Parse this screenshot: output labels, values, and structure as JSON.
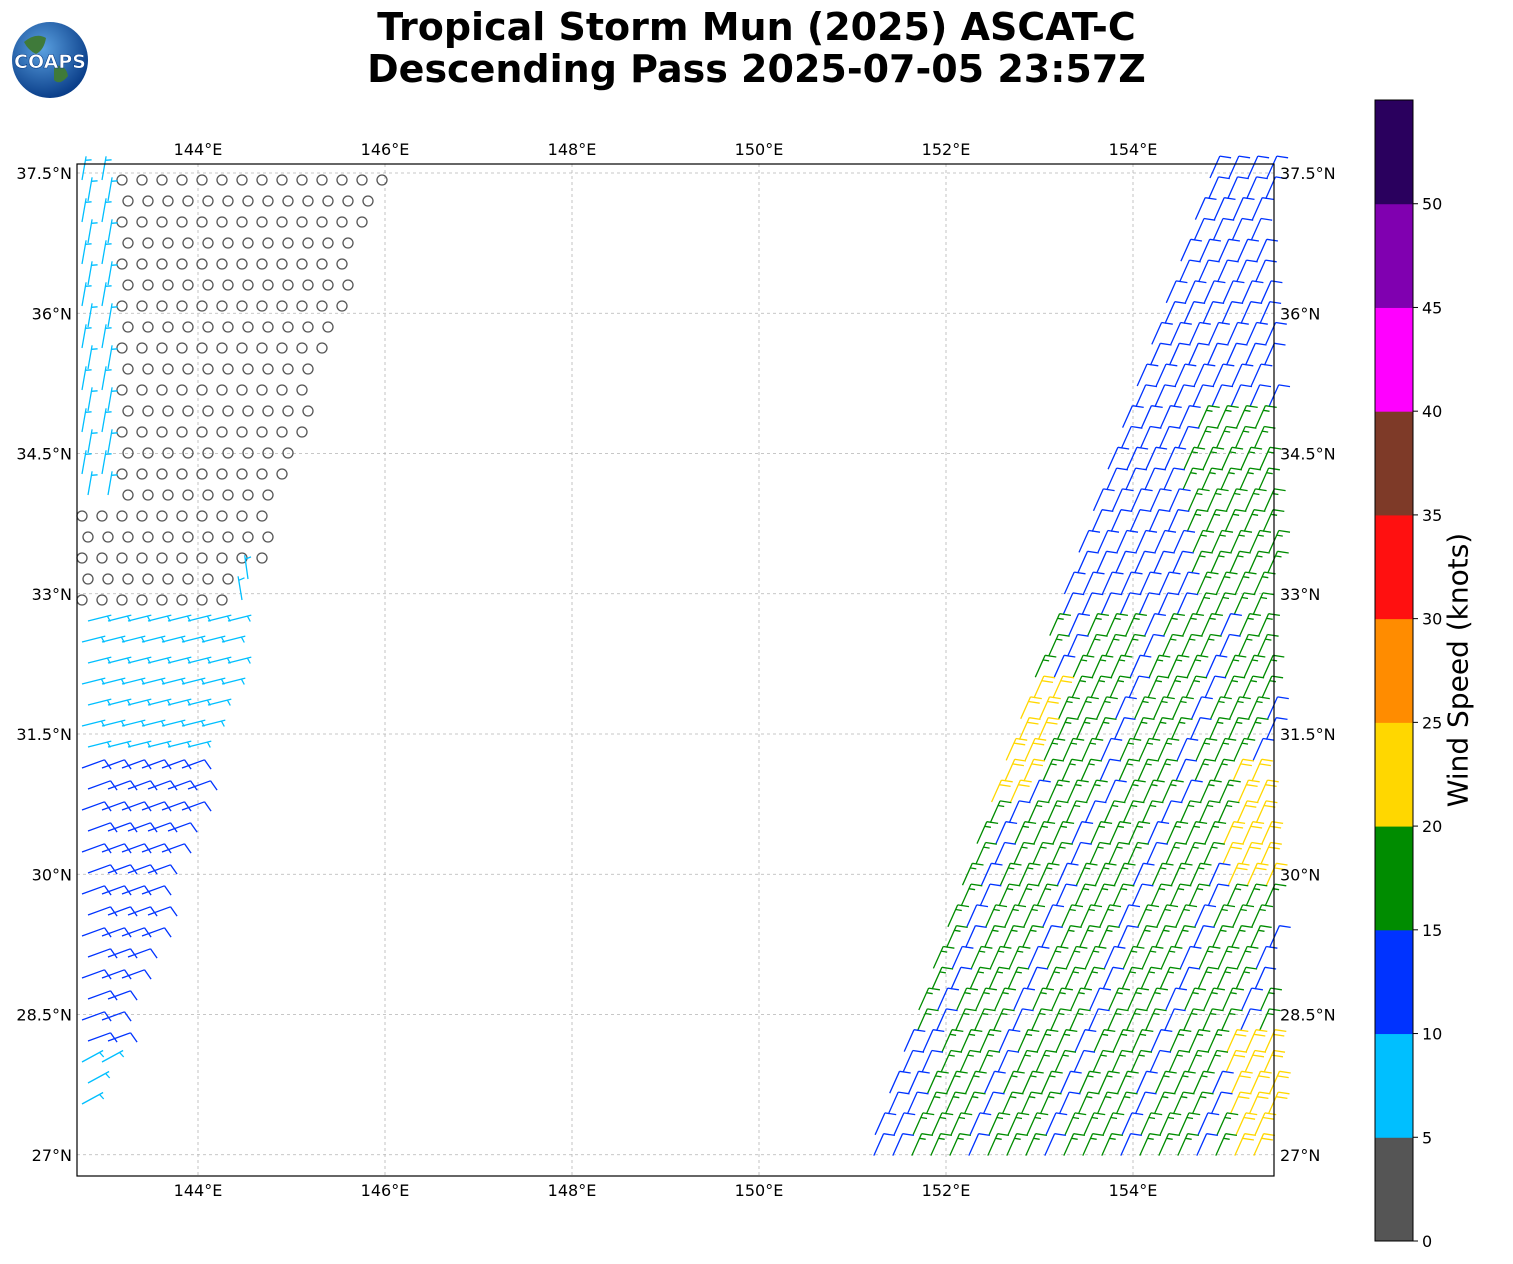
{
  "title": {
    "line1": "Tropical Storm Mun (2025) ASCAT-C",
    "line2": "Descending Pass 2025-07-05 23:57Z"
  },
  "logo": {
    "text": "COAPS",
    "icon": "globe-logo-icon"
  },
  "map": {
    "lon_ticks": [
      "144°E",
      "146°E",
      "148°E",
      "150°E",
      "152°E",
      "154°E"
    ],
    "lat_ticks": [
      "37.5°N",
      "36°N",
      "34.5°N",
      "33°N",
      "31.5°N",
      "30°N",
      "28.5°N",
      "27°N"
    ],
    "lon_range": [
      142.7,
      155.5
    ],
    "lat_range": [
      26.8,
      37.6
    ],
    "gridlines": true
  },
  "colorbar": {
    "label": "Wind Speed (knots)",
    "ticks": [
      "0",
      "5",
      "10",
      "15",
      "20",
      "25",
      "30",
      "35",
      "40",
      "45",
      "50"
    ],
    "colors": [
      "#555555",
      "#00bfff",
      "#0033ff",
      "#008c00",
      "#ffd700",
      "#ff8c00",
      "#ff1010",
      "#7e3a28",
      "#ff00ff",
      "#8000b0",
      "#2a005e"
    ]
  },
  "chart_data": {
    "type": "wind-barbs",
    "units": "knots",
    "swaths": [
      {
        "lon_range": [
          142.7,
          146.1
        ],
        "lat_range": [
          26.8,
          37.6
        ]
      },
      {
        "lon_range": [
          151.0,
          155.5
        ],
        "lat_range": [
          26.8,
          37.6
        ]
      }
    ]
  }
}
